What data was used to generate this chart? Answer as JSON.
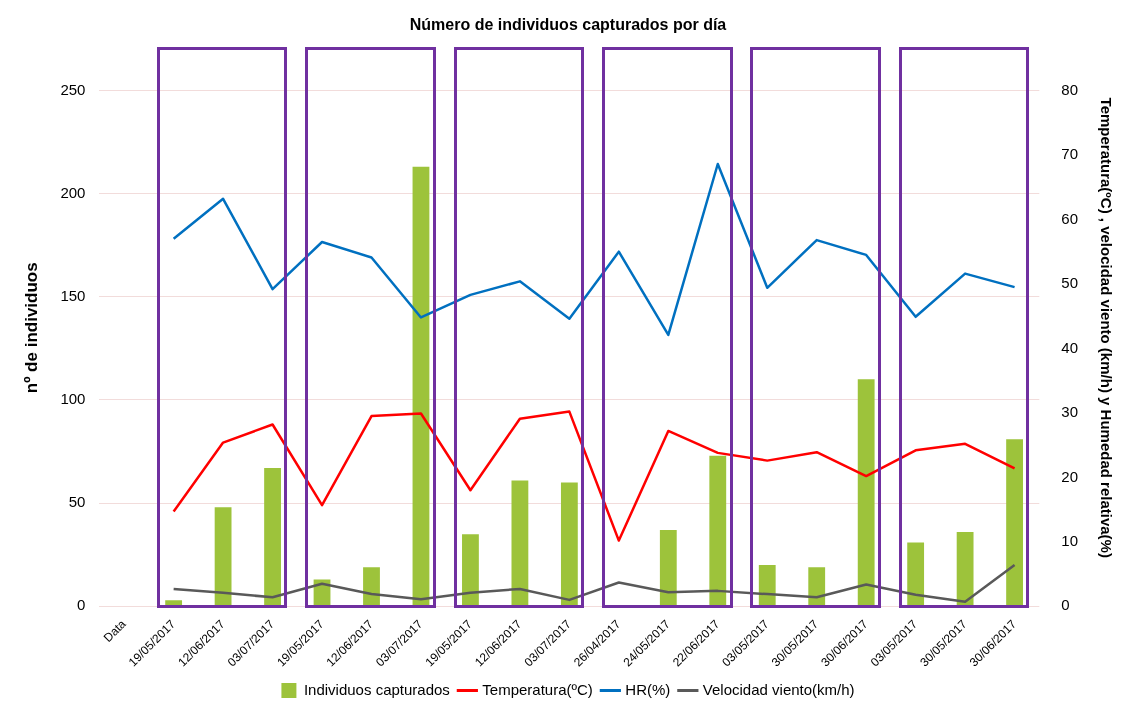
{
  "chart_data": {
    "type": "bar",
    "title": "Número de individuos capturados por día",
    "ylabel": "nº de individuos",
    "y2label": "Temperatura(ºC) , velocidad viento (km/h) y Humedad relativa(%)",
    "categories": [
      "Data",
      "19/05/2017",
      "12/06/2017",
      "03/07/2017",
      "19/05/2017",
      "12/06/2017",
      "03/07/2017",
      "19/05/2017",
      "12/06/2017",
      "03/07/2017",
      "26/04/2017",
      "24/05/2017",
      "22/06/2017",
      "03/05/2017",
      "30/05/2017",
      "30/06/2017",
      "03/05/2017",
      "30/05/2017",
      "30/06/2017"
    ],
    "series": [
      {
        "name": "Individuos capturados",
        "color": "#9dc33b",
        "values": [
          null,
          3,
          48,
          67,
          13,
          19,
          213,
          35,
          61,
          60,
          0,
          37,
          73,
          20,
          19,
          110,
          31,
          36,
          81
        ]
      },
      {
        "name": "Temperatura(ºC)",
        "type": "line",
        "axis": "y2",
        "color": "#ff0000",
        "values": [
          null,
          14.7,
          25.4,
          28.2,
          15.7,
          29.5,
          29.9,
          18.0,
          29.1,
          30.2,
          10.2,
          27.2,
          23.8,
          22.6,
          23.9,
          20.2,
          24.2,
          25.2,
          21.4
        ]
      },
      {
        "name": "HR(%)",
        "type": "line",
        "axis": "y2",
        "color": "#0070c0",
        "values": [
          null,
          57.0,
          63.2,
          49.2,
          56.5,
          54.1,
          44.8,
          48.3,
          50.4,
          44.6,
          55.0,
          42.1,
          68.6,
          49.4,
          56.8,
          54.5,
          44.9,
          51.6,
          49.5
        ]
      },
      {
        "name": "Velocidad viento(km/h)",
        "type": "line",
        "axis": "y2",
        "color": "#595959",
        "values": [
          null,
          2.7,
          2.1,
          1.4,
          3.5,
          1.9,
          1.1,
          2.1,
          2.7,
          1.0,
          3.7,
          2.2,
          2.4,
          1.9,
          1.4,
          3.4,
          1.8,
          0.7,
          6.4
        ]
      }
    ],
    "ylim": [
      0,
      270
    ],
    "yticks": [
      0,
      50,
      100,
      150,
      200,
      250
    ],
    "y2lim": [
      0,
      86.4
    ],
    "y2ticks": [
      0,
      10,
      20,
      30,
      40,
      50,
      60,
      70,
      80
    ],
    "grid": "y",
    "legend": "bottom",
    "marker": "none",
    "line_style": "solid"
  }
}
